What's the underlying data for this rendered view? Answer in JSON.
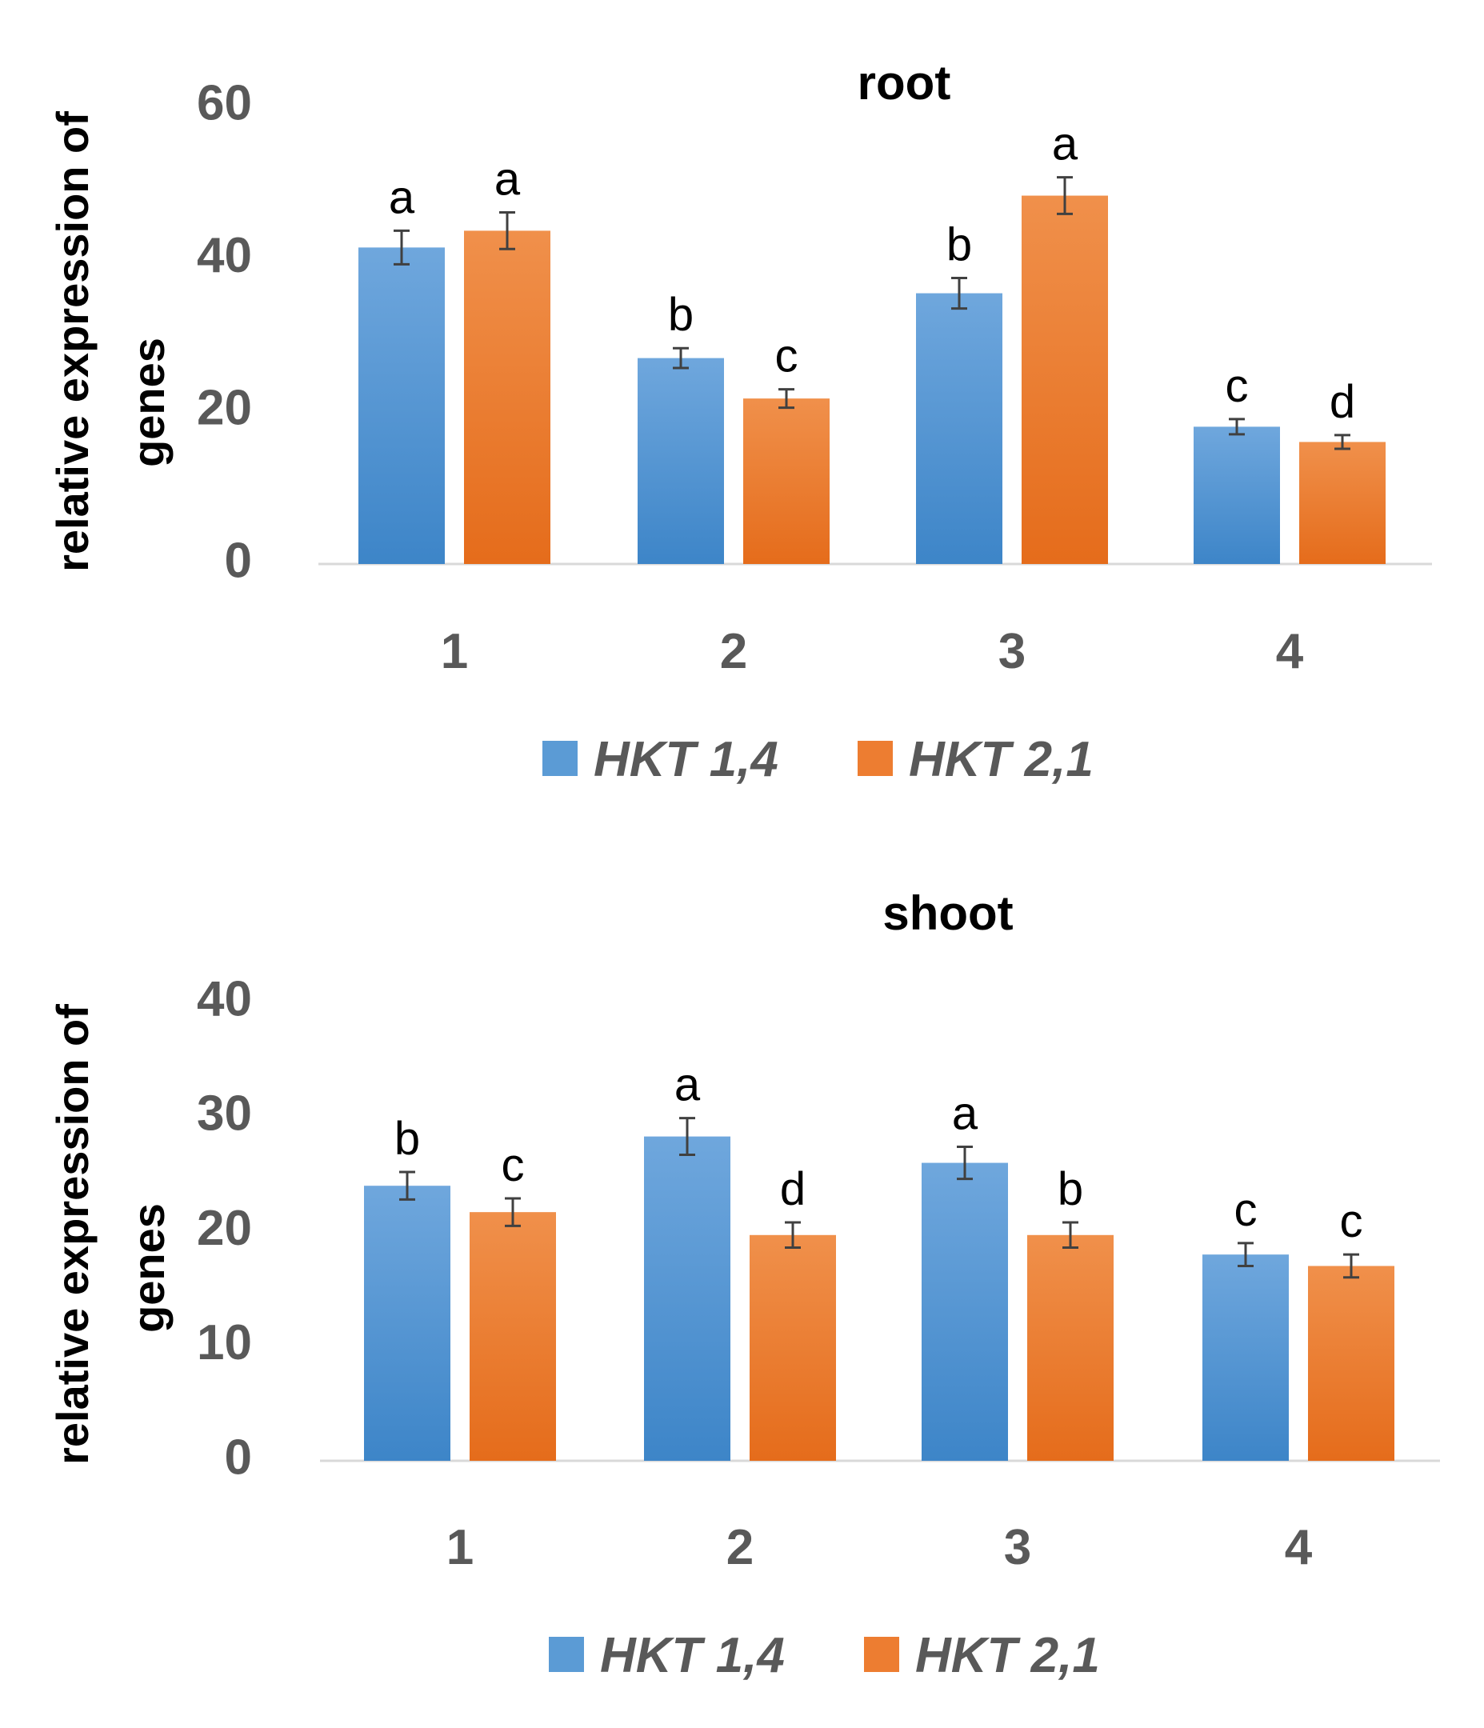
{
  "chart_data": [
    {
      "type": "bar",
      "title": "root",
      "ylabel": "relative expression of genes",
      "ylabel_lines": [
        "relative expression of",
        "genes"
      ],
      "xlabel": "",
      "categories": [
        "1",
        "2",
        "3",
        "4"
      ],
      "ylim": [
        0,
        60
      ],
      "yticks": [
        0,
        20,
        40,
        60
      ],
      "series": [
        {
          "name": "HKT 1,4",
          "color": "#5b9bd5",
          "values": [
            41.5,
            27,
            35.5,
            18
          ],
          "errors": [
            2.2,
            1.3,
            2.0,
            1.0
          ],
          "letters": [
            "a",
            "b",
            "b",
            "c"
          ]
        },
        {
          "name": "HKT 2,1",
          "color": "#ed7d31",
          "values": [
            43.7,
            21.7,
            48.3,
            16
          ],
          "errors": [
            2.4,
            1.2,
            2.4,
            0.9
          ],
          "letters": [
            "a",
            "c",
            "a",
            "d"
          ]
        }
      ],
      "legend": "bottom"
    },
    {
      "type": "bar",
      "title": "shoot",
      "ylabel": "relative expression of genes",
      "ylabel_lines": [
        "relative expression of",
        "genes"
      ],
      "xlabel": "",
      "categories": [
        "1",
        "2",
        "3",
        "4"
      ],
      "ylim": [
        0,
        40
      ],
      "yticks": [
        0,
        10,
        20,
        30,
        40
      ],
      "series": [
        {
          "name": "HKT 1,4",
          "color": "#5b9bd5",
          "values": [
            24,
            28.3,
            26,
            18
          ],
          "errors": [
            1.2,
            1.6,
            1.4,
            1.0
          ],
          "letters": [
            "b",
            "a",
            "a",
            "c"
          ]
        },
        {
          "name": "HKT 2,1",
          "color": "#ed7d31",
          "values": [
            21.7,
            19.7,
            19.7,
            17
          ],
          "errors": [
            1.2,
            1.1,
            1.1,
            1.0
          ],
          "letters": [
            "c",
            "d",
            "b",
            "c"
          ]
        }
      ],
      "legend": "bottom"
    }
  ]
}
